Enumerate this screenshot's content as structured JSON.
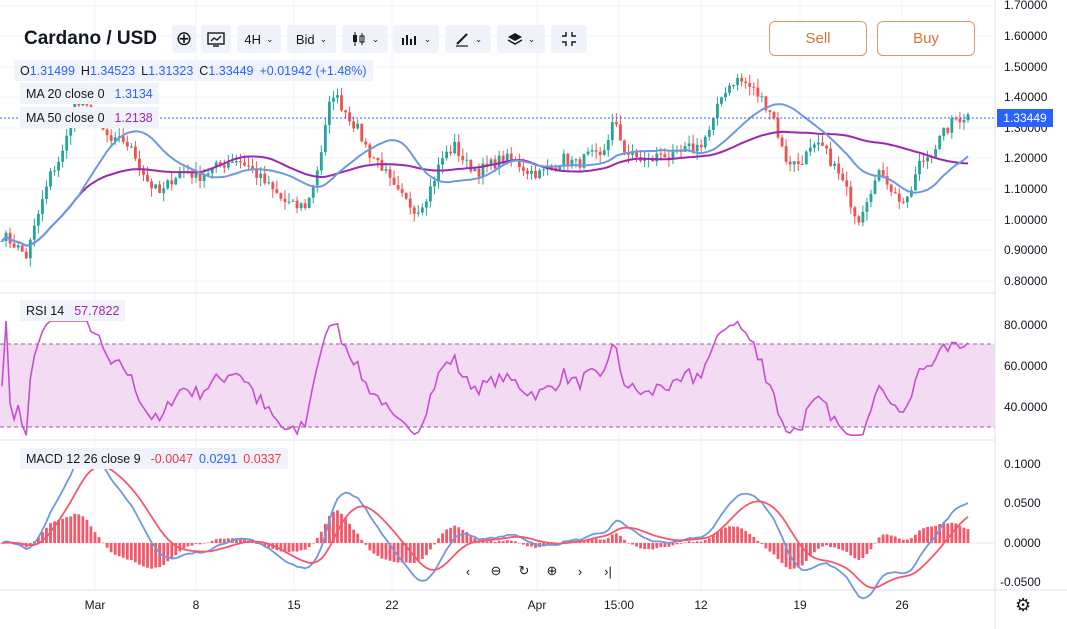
{
  "header": {
    "title": "Cardano / USD",
    "interval": "4H",
    "price_source": "Bid",
    "sell_label": "Sell",
    "buy_label": "Buy",
    "icons": [
      "add-symbol-icon",
      "compare-icon",
      "chevron-down-icon",
      "candles-icon",
      "bars-style-icon",
      "drawing-icon",
      "layers-icon",
      "collapse-icon"
    ]
  },
  "ohlc": {
    "o_label": "O",
    "o": "1.31499",
    "h_label": "H",
    "h": "1.34523",
    "l_label": "L",
    "l": "1.31323",
    "c_label": "C",
    "c": "1.33449",
    "change": "+0.01942 (+1.48%)"
  },
  "ma20": {
    "label": "MA 20 close 0",
    "value": "1.3134",
    "color": "#6f98e0"
  },
  "ma50": {
    "label": "MA 50 close 0",
    "value": "1.2138",
    "color": "#9c27b0"
  },
  "rsi": {
    "label": "RSI 14",
    "value": "57.7822",
    "color": "#c64fd1"
  },
  "macd": {
    "label": "MACD 12 26 close 9",
    "hist": "-0.0047",
    "macd": "0.0291",
    "signal": "0.0337"
  },
  "last_price": "1.33449",
  "price_axis": [
    "1.70000",
    "1.60000",
    "1.50000",
    "1.40000",
    "1.30000",
    "1.20000",
    "1.10000",
    "1.00000",
    "0.90000",
    "0.80000"
  ],
  "rsi_axis": [
    "80.0000",
    "60.0000",
    "40.0000"
  ],
  "macd_axis": [
    "0.1000",
    "0.0500",
    "0.0000",
    "-0.0500"
  ],
  "time_axis": [
    "Mar",
    "8",
    "15",
    "22",
    "Apr",
    "15:00",
    "12",
    "19",
    "26"
  ],
  "colors": {
    "up": "#26a69a",
    "down": "#ef5350",
    "accent": "#2962ff",
    "orange": "#d0763c"
  },
  "chart_data": {
    "type": "candlestick",
    "price_anchors": [
      0.95,
      0.92,
      0.88,
      1.02,
      1.15,
      1.22,
      1.38,
      1.36,
      1.3,
      1.25,
      1.26,
      1.2,
      1.12,
      1.08,
      1.14,
      1.16,
      1.14,
      1.16,
      1.18,
      1.2,
      1.18,
      1.14,
      1.1,
      1.06,
      1.04,
      1.05,
      1.2,
      1.42,
      1.36,
      1.3,
      1.22,
      1.18,
      1.1,
      1.06,
      1.03,
      1.1,
      1.2,
      1.24,
      1.18,
      1.16,
      1.18,
      1.2,
      1.19,
      1.16,
      1.15,
      1.17,
      1.2,
      1.18,
      1.21,
      1.2,
      1.32,
      1.22,
      1.2,
      1.19,
      1.22,
      1.2,
      1.23,
      1.24,
      1.3,
      1.42,
      1.46,
      1.44,
      1.4,
      1.35,
      1.2,
      1.18,
      1.22,
      1.24,
      1.18,
      1.1,
      1.0,
      1.1,
      1.16,
      1.08,
      1.05,
      1.18,
      1.22,
      1.28,
      1.33,
      1.34
    ],
    "rsi_range": [
      30,
      70
    ],
    "macd_range": [
      -0.05,
      0.1
    ]
  }
}
